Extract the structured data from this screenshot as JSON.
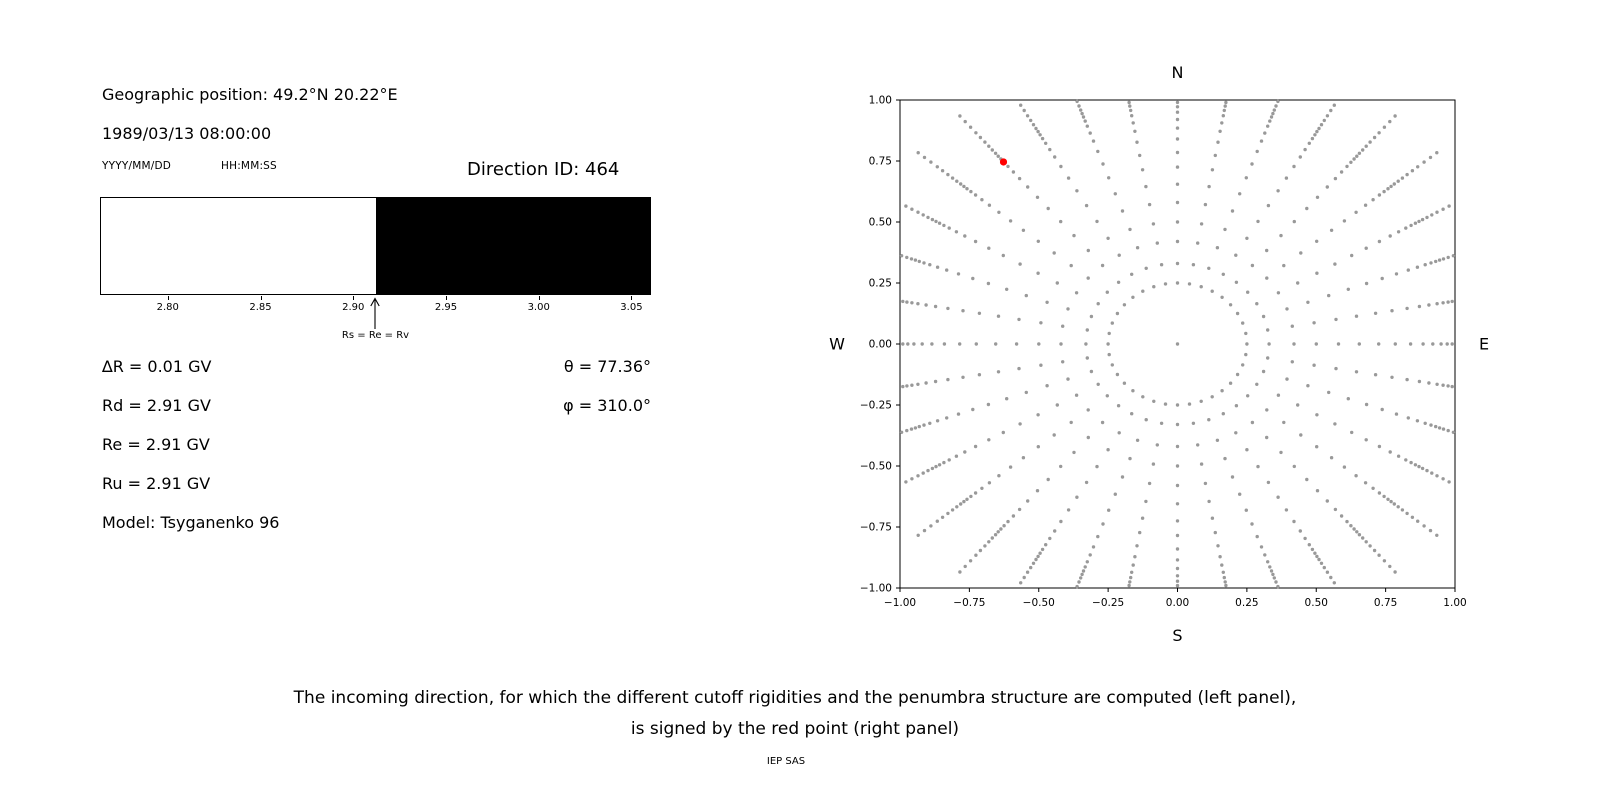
{
  "left_panel": {
    "geo_position": "Geographic position: 49.2°N 20.22°E",
    "datetime": "1989/03/13 08:00:00",
    "date_format_label": "YYYY/MM/DD",
    "time_format_label": "HH:MM:SS",
    "direction_id": "Direction ID: 464",
    "values": [
      "∆R = 0.01 GV",
      "Rd = 2.91 GV",
      "Re = 2.91 GV",
      "Ru = 2.91 GV",
      "Model: Tsyganenko 96"
    ],
    "theta": "θ = 77.36°",
    "phi": "φ = 310.0°",
    "arrow_label": "Rs = Re = Rv"
  },
  "caption": {
    "line1": "The incoming direction, for which the different cutoff rigidities and the penumbra structure are computed (left panel),",
    "line2": "is signed by the red point (right panel)"
  },
  "footer": "IEP SAS",
  "chart_data": [
    {
      "id": "penumbra",
      "type": "bar",
      "xlim": [
        2.764,
        3.06
      ],
      "xticks": [
        2.8,
        2.85,
        2.9,
        2.95,
        3.0,
        3.05
      ],
      "xtick_labels": [
        "2.80",
        "2.85",
        "2.90",
        "2.95",
        "3.00",
        "3.05"
      ],
      "regions": [
        {
          "from": 2.764,
          "to": 2.912,
          "color": "#ffffff"
        },
        {
          "from": 2.912,
          "to": 3.06,
          "color": "#000000"
        }
      ],
      "marker": {
        "x": 2.912,
        "label": "Rs = Re = Rv"
      }
    },
    {
      "id": "directions",
      "type": "scatter",
      "xlim": [
        -1.0,
        1.0
      ],
      "ylim": [
        -1.0,
        1.0
      ],
      "xticks": [
        -1.0,
        -0.75,
        -0.5,
        -0.25,
        0.0,
        0.25,
        0.5,
        0.75,
        1.0
      ],
      "xtick_labels": [
        "−1.00",
        "−0.75",
        "−0.50",
        "−0.25",
        "0.00",
        "0.25",
        "0.50",
        "0.75",
        "1.00"
      ],
      "yticks": [
        -1.0,
        -0.75,
        -0.5,
        -0.25,
        0.0,
        0.25,
        0.5,
        0.75,
        1.0
      ],
      "ytick_labels": [
        "−1.00",
        "−0.75",
        "−0.50",
        "−0.25",
        "0.00",
        "0.25",
        "0.50",
        "0.75",
        "1.00"
      ],
      "compass_labels": {
        "top": "N",
        "bottom": "S",
        "left": "W",
        "right": "E"
      },
      "dot_color": "#999999",
      "dot_radius": 1.7,
      "center_dot": true,
      "spokes": {
        "count": 36,
        "step_deg": 10,
        "radii": [
          0.25,
          0.33,
          0.42,
          0.5,
          0.58,
          0.655,
          0.725,
          0.785,
          0.84,
          0.885,
          0.92,
          0.95,
          0.972,
          0.99,
          1.005,
          1.02,
          1.038,
          1.058,
          1.08,
          1.105,
          1.13,
          1.16,
          1.19,
          1.22
        ]
      },
      "clip_to_limits": true,
      "red_point": {
        "x": -0.627,
        "y": 0.746,
        "color": "#ff0000",
        "radius": 3.6
      }
    }
  ]
}
